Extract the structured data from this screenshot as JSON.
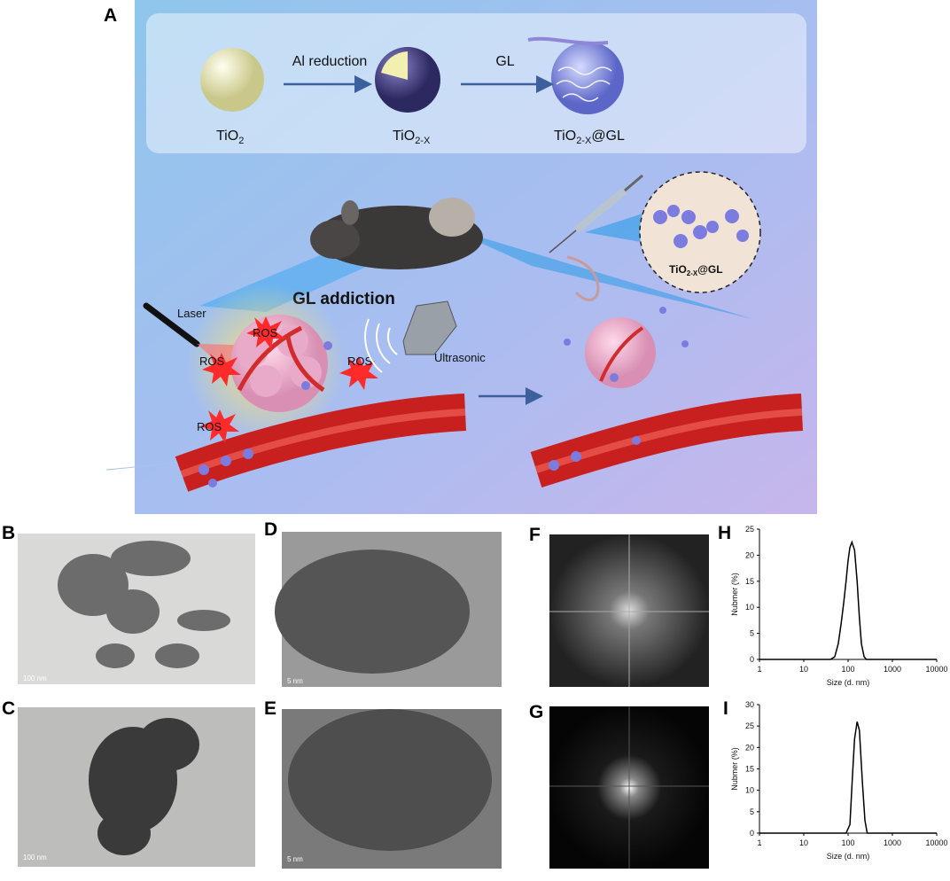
{
  "panel_labels": [
    "A",
    "B",
    "C",
    "D",
    "E",
    "F",
    "G",
    "H",
    "I"
  ],
  "scheme": {
    "step_labels": [
      "Al reduction",
      "GL"
    ],
    "tio2": {
      "formula": "TiO",
      "subscript": "2"
    },
    "tio2x": {
      "formula": "TiO",
      "subscript": "2-X"
    },
    "tio2x_gl": {
      "formula": "TiO",
      "subscript": "2-X",
      "suffix": "@GL"
    },
    "inset_label": {
      "formula": "TiO",
      "subscript": "2-X",
      "suffix": "@GL"
    },
    "laser": "Laser",
    "ros": [
      "ROS",
      "ROS",
      "ROS",
      "ROS"
    ],
    "gl_addiction": "GL addiction",
    "ultrasonic": "Ultrasonic"
  },
  "scale_bars": [
    "100 nm",
    "100 nm",
    "5 nm",
    "5 nm"
  ],
  "chart_data": [
    {
      "type": "line",
      "x_label": "Size (d. nm)",
      "y_label": "Nubmer (%)",
      "xscale": "log",
      "xlim": [
        1,
        10000
      ],
      "xticks": [
        1,
        10,
        100,
        1000,
        10000
      ],
      "ylim": [
        0,
        25
      ],
      "yticks": [
        0,
        5,
        10,
        15,
        20,
        25
      ],
      "color": "#000000",
      "x": [
        1,
        40,
        50,
        60,
        70,
        80,
        90,
        100,
        110,
        122,
        140,
        160,
        180,
        200,
        230,
        260,
        10000
      ],
      "values": [
        0,
        0,
        0.5,
        3,
        7,
        11,
        15,
        19,
        21.5,
        22.5,
        21,
        15,
        8,
        3,
        0.5,
        0,
        0
      ]
    },
    {
      "type": "line",
      "x_label": "Size (d. nm)",
      "y_label": "Nubmer (%)",
      "xscale": "log",
      "xlim": [
        1,
        10000
      ],
      "xticks": [
        1,
        10,
        100,
        1000,
        10000
      ],
      "ylim": [
        0,
        30
      ],
      "yticks": [
        0,
        5,
        10,
        15,
        20,
        25,
        30
      ],
      "color": "#000000",
      "x": [
        1,
        90,
        110,
        125,
        140,
        160,
        180,
        210,
        240,
        270,
        10000
      ],
      "values": [
        0,
        0,
        2,
        13,
        22,
        26,
        24,
        12,
        3,
        0,
        0
      ]
    }
  ]
}
